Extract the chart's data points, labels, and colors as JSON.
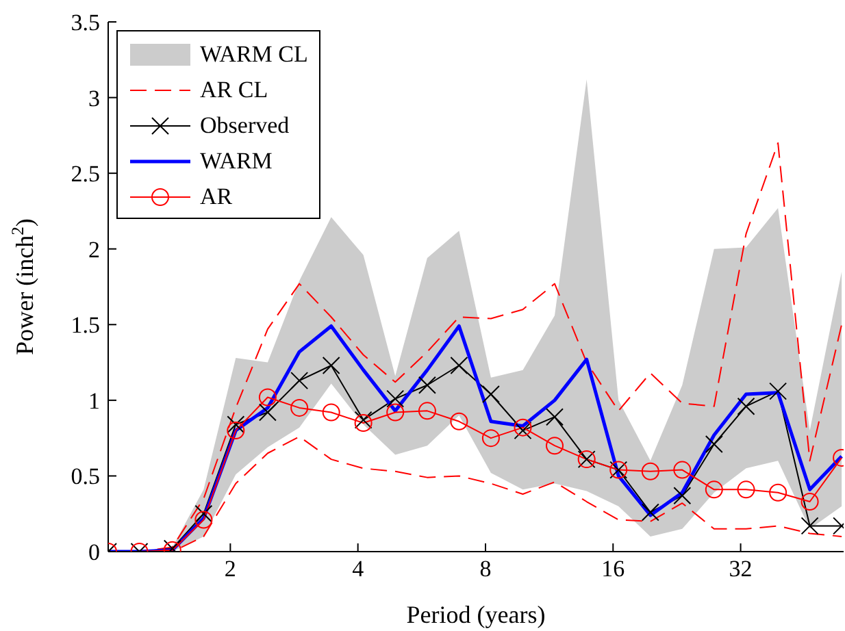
{
  "chart_data": {
    "type": "line",
    "xlabel": "Period (years)",
    "ylabel": "Power (inch$^{2}$)",
    "log": "x",
    "xlim": [
      1.03,
      56
    ],
    "xticks": [
      2,
      4,
      8,
      16,
      32
    ],
    "ylim": [
      0,
      3.5
    ],
    "yticks": [
      0,
      0.5,
      1,
      1.5,
      2,
      2.5,
      3,
      3.5
    ],
    "grid": false,
    "legend": "top left",
    "x": [
      1.03,
      1.22,
      1.46,
      1.73,
      2.06,
      2.45,
      2.91,
      3.46,
      4.12,
      4.9,
      5.83,
      6.93,
      8.24,
      9.8,
      11.65,
      13.86,
      16.48,
      19.6,
      23.3,
      27.7,
      32.96,
      39.2,
      46.6,
      55.4
    ],
    "series": [
      {
        "name": "WARM CL",
        "type": "area",
        "color": "#cccccc",
        "lower": [
          0,
          0,
          0,
          0.1,
          0.51,
          0.69,
          0.82,
          1.11,
          0.84,
          0.64,
          0.7,
          0.9,
          0.52,
          0.41,
          0.45,
          0.4,
          0.3,
          0.1,
          0.15,
          0.39,
          0.55,
          0.6,
          0.15,
          0.3
        ],
        "upper": [
          0,
          0,
          0.03,
          0.41,
          1.28,
          1.25,
          1.79,
          2.21,
          1.96,
          1.16,
          1.94,
          2.12,
          1.15,
          1.2,
          1.56,
          3.12,
          1.0,
          0.6,
          1.1,
          2.0,
          2.01,
          2.27,
          0.8,
          1.85
        ],
        "values": [
          null,
          null,
          null,
          null,
          null,
          null,
          null,
          null,
          null,
          null,
          null,
          null,
          null,
          null,
          null,
          null,
          null,
          null,
          null,
          null,
          null,
          null,
          null,
          null
        ]
      },
      {
        "name": "AR CL",
        "type": "line",
        "line_style": "dashed",
        "marker": "none",
        "color": "#ff0000",
        "values": [
          0,
          0,
          0.03,
          0.35,
          0.95,
          1.47,
          1.77,
          1.55,
          1.3,
          1.12,
          1.32,
          1.55,
          1.54,
          1.6,
          1.77,
          1.25,
          0.93,
          1.18,
          0.98,
          0.96,
          2.1,
          2.7,
          0.6,
          1.5
        ]
      },
      {
        "line_style": "dashed",
        "marker": "none",
        "color": "#ff0000",
        "values": [
          0,
          0,
          0,
          0.1,
          0.45,
          0.65,
          0.76,
          0.61,
          0.55,
          0.53,
          0.49,
          0.5,
          0.45,
          0.38,
          0.46,
          0.33,
          0.21,
          0.2,
          0.32,
          0.15,
          0.15,
          0.17,
          0.12,
          0.1
        ]
      },
      {
        "name": "Observed",
        "type": "line",
        "marker": "cross",
        "color": "#000000",
        "values": [
          0,
          0,
          0.02,
          0.25,
          0.84,
          0.92,
          1.13,
          1.23,
          0.87,
          1.01,
          1.1,
          1.23,
          1.04,
          0.8,
          0.89,
          0.61,
          0.54,
          0.26,
          0.37,
          0.71,
          0.96,
          1.06,
          0.17,
          0.17
        ]
      },
      {
        "name": "WARM",
        "type": "line",
        "marker": "none",
        "color": "#0000ff",
        "values": [
          0,
          0,
          0.01,
          0.22,
          0.8,
          0.95,
          1.32,
          1.49,
          1.2,
          0.93,
          1.2,
          1.49,
          0.86,
          0.83,
          1.0,
          1.27,
          0.5,
          0.24,
          0.39,
          0.77,
          1.04,
          1.05,
          0.41,
          0.63
        ]
      },
      {
        "name": "AR",
        "marker": "circle",
        "color": "#ff0000",
        "values": [
          0,
          0,
          0.01,
          0.21,
          0.8,
          1.02,
          0.95,
          0.92,
          0.85,
          0.92,
          0.93,
          0.86,
          0.75,
          0.82,
          0.7,
          0.61,
          0.54,
          0.53,
          0.54,
          0.41,
          0.41,
          0.39,
          0.33,
          0.62
        ]
      }
    ]
  }
}
